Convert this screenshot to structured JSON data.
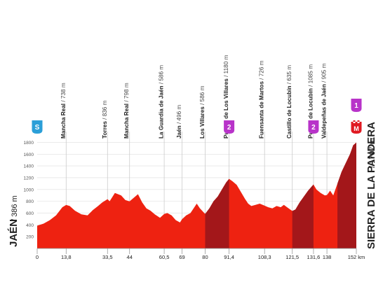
{
  "chart_data": {
    "type": "area",
    "units": {
      "distance": "km",
      "altitude": "m"
    },
    "start": {
      "name": "JAÉN",
      "altitude_label": "/ 386 m",
      "badge": "S"
    },
    "finish": {
      "name": "SIERRA DE LA PANDERA",
      "altitude_label": "/ 1797 m",
      "badge": "M",
      "category": "1"
    },
    "ylim": [
      0,
      1900
    ],
    "xlim": [
      0,
      152
    ],
    "y_ticks": [
      200,
      400,
      600,
      800,
      1000,
      1200,
      1400,
      1600,
      1800
    ],
    "x_ticks": [
      {
        "value": 0,
        "label": "0"
      },
      {
        "value": 13.8,
        "label": "13,8"
      },
      {
        "value": 33.5,
        "label": "33,5"
      },
      {
        "value": 44,
        "label": "44"
      },
      {
        "value": 60.5,
        "label": "60,5"
      },
      {
        "value": 69,
        "label": "69"
      },
      {
        "value": 80,
        "label": "80"
      },
      {
        "value": 91.4,
        "label": "91,4"
      },
      {
        "value": 108.3,
        "label": "108,3"
      },
      {
        "value": 121.5,
        "label": "121,5"
      },
      {
        "value": 131.6,
        "label": "131,6"
      },
      {
        "value": 138,
        "label": "138"
      },
      {
        "value": 152,
        "label": "152 km"
      }
    ],
    "profile": [
      [
        0,
        386
      ],
      [
        3,
        420
      ],
      [
        6,
        480
      ],
      [
        9,
        560
      ],
      [
        12,
        700
      ],
      [
        13.8,
        738
      ],
      [
        15.5,
        720
      ],
      [
        18,
        640
      ],
      [
        21,
        580
      ],
      [
        24,
        560
      ],
      [
        26.5,
        650
      ],
      [
        29,
        720
      ],
      [
        31,
        780
      ],
      [
        33.5,
        836
      ],
      [
        34.5,
        800
      ],
      [
        37,
        940
      ],
      [
        40,
        900
      ],
      [
        42,
        820
      ],
      [
        44,
        798
      ],
      [
        46,
        860
      ],
      [
        48,
        920
      ],
      [
        50,
        780
      ],
      [
        52,
        680
      ],
      [
        54,
        640
      ],
      [
        56,
        580
      ],
      [
        58.5,
        520
      ],
      [
        60.5,
        586
      ],
      [
        62,
        600
      ],
      [
        64,
        560
      ],
      [
        66,
        480
      ],
      [
        68,
        440
      ],
      [
        69,
        496
      ],
      [
        71,
        560
      ],
      [
        73,
        600
      ],
      [
        74.5,
        680
      ],
      [
        76,
        760
      ],
      [
        77.5,
        680
      ],
      [
        80,
        586
      ],
      [
        82,
        680
      ],
      [
        84,
        800
      ],
      [
        86,
        880
      ],
      [
        88,
        1000
      ],
      [
        90,
        1120
      ],
      [
        91.4,
        1180
      ],
      [
        93,
        1140
      ],
      [
        95,
        1080
      ],
      [
        97,
        960
      ],
      [
        99,
        840
      ],
      [
        100.5,
        760
      ],
      [
        102,
        720
      ],
      [
        104,
        740
      ],
      [
        106,
        760
      ],
      [
        108.3,
        726
      ],
      [
        110,
        700
      ],
      [
        112,
        680
      ],
      [
        114,
        720
      ],
      [
        116,
        700
      ],
      [
        117.5,
        740
      ],
      [
        119,
        700
      ],
      [
        121.5,
        635
      ],
      [
        123,
        660
      ],
      [
        125,
        780
      ],
      [
        127,
        880
      ],
      [
        129,
        980
      ],
      [
        131.6,
        1085
      ],
      [
        133,
        1000
      ],
      [
        135,
        940
      ],
      [
        137,
        900
      ],
      [
        138,
        905
      ],
      [
        139.5,
        980
      ],
      [
        141,
        900
      ],
      [
        143,
        1100
      ],
      [
        145,
        1300
      ],
      [
        147,
        1450
      ],
      [
        149,
        1600
      ],
      [
        150.5,
        1750
      ],
      [
        152,
        1797
      ]
    ],
    "climb_segments": [
      {
        "from": 80,
        "to": 91.4,
        "category": "2"
      },
      {
        "from": 121.5,
        "to": 131.6,
        "category": "2"
      },
      {
        "from": 143,
        "to": 152,
        "category": "1"
      }
    ],
    "waypoints": [
      {
        "km": 13.8,
        "name": "Mancha Real",
        "alt": "738 m"
      },
      {
        "km": 33.5,
        "name": "Torres",
        "alt": "836 m"
      },
      {
        "km": 44,
        "name": "Mancha Real",
        "alt": "798 m"
      },
      {
        "km": 60.5,
        "name": "La Guardia de Jaén",
        "alt": "586 m"
      },
      {
        "km": 69,
        "name": "Jaén",
        "alt": "496 m"
      },
      {
        "km": 80,
        "name": "Los Villares",
        "alt": "586 m"
      },
      {
        "km": 91.4,
        "name": "Puerto de Los Villares",
        "alt": "1180 m",
        "category": "2"
      },
      {
        "km": 108.3,
        "name": "Fuensanta de Martos",
        "alt": "726 m"
      },
      {
        "km": 121.5,
        "name": "Castillo de Locubín",
        "alt": "635 m"
      },
      {
        "km": 131.6,
        "name": "Puerto de Locubín",
        "alt": "1085 m",
        "category": "2"
      },
      {
        "km": 138,
        "name": "Valdepeñas de Jaén",
        "alt": "905 m"
      }
    ],
    "colors": {
      "profile_fill": "#ee2211",
      "climb_fill": "#a3171a",
      "climb_badge": "#b833c9",
      "start_badge": "#2b9fd8",
      "finish_badge": "#e01a22",
      "grid": "#dddddd",
      "waypoint_line": "#cccccc",
      "text": "#222222"
    }
  }
}
